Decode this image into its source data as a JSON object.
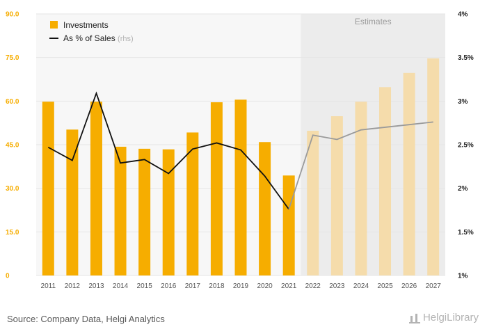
{
  "chart_data": {
    "type": "bar",
    "categories": [
      "2011",
      "2012",
      "2013",
      "2014",
      "2015",
      "2016",
      "2017",
      "2018",
      "2019",
      "2020",
      "2021",
      "2022",
      "2023",
      "2024",
      "2025",
      "2026",
      "2027"
    ],
    "series": [
      {
        "name": "Investments",
        "type": "bar",
        "axis": "left",
        "values": [
          59.8,
          50.2,
          59.8,
          44.3,
          43.6,
          43.4,
          49.2,
          59.6,
          60.5,
          45.9,
          34.4,
          49.8,
          54.8,
          59.8,
          64.8,
          69.7,
          74.7
        ]
      },
      {
        "name": "As % of Sales",
        "name_suffix": "(rhs)",
        "type": "line",
        "axis": "right",
        "values": [
          2.47,
          2.32,
          3.09,
          2.29,
          2.33,
          2.17,
          2.45,
          2.52,
          2.44,
          2.14,
          1.76,
          2.61,
          2.56,
          2.67,
          2.7,
          2.73,
          2.76
        ]
      }
    ],
    "estimate_start": "2022",
    "estimates_label": "Estimates",
    "y_left": {
      "min": 0,
      "max": 90,
      "ticks": [
        "0",
        "15.0",
        "30.0",
        "45.0",
        "60.0",
        "75.0",
        "90.0"
      ]
    },
    "y_right": {
      "min": 1,
      "max": 4,
      "ticks": [
        "1%",
        "1.5%",
        "2%",
        "2.5%",
        "3%",
        "3.5%",
        "4%"
      ]
    },
    "legend_position": "top-left",
    "grid": true,
    "colors": {
      "bar": "#f6ad00",
      "bar_estimate": "#f5dcab",
      "line": "#111111",
      "line_estimate": "#9a9a9a",
      "estimate_band": "#ececec",
      "tick_left": "#f6ad00",
      "tick_right": "#222222",
      "tick_x": "#555555",
      "grid": "#e6e6e6"
    }
  },
  "footer": {
    "source": "Source: Company Data, Helgi Analytics",
    "logo_text": "HelgiLibrary"
  }
}
